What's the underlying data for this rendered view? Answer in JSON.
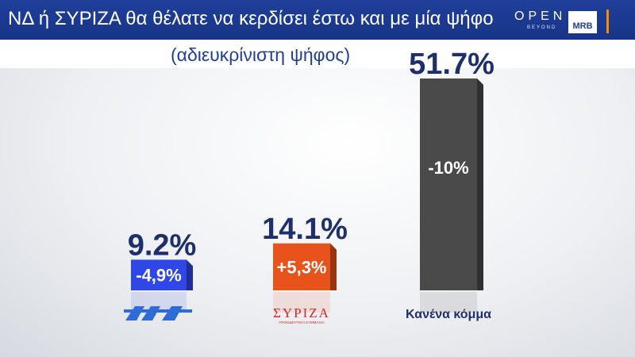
{
  "header": {
    "title": "ΝΔ ή ΣΥΡΙΖΑ θα θέλατε να κερδίσει έστω και με μία ψήφο",
    "subtitle": "(αδιευκρίνιστη ψήφος)",
    "brand": "OPEN",
    "brand_sub": "BEYOND",
    "pollster": "MRB"
  },
  "chart_data": {
    "type": "bar",
    "categories": [
      "ΝΔ",
      "ΣΥΡΙΖΑ",
      "Κανένα κόμμα"
    ],
    "values": [
      9.2,
      14.1,
      51.7
    ],
    "value_labels": [
      "9.2%",
      "14.1%",
      "51.7%"
    ],
    "change_labels": [
      "-4,9%",
      "+5,3%",
      "-10%"
    ],
    "category_labels": [
      "",
      "",
      "Κανένα κόμμα"
    ],
    "logo_text": [
      "",
      "ΣΥΡΙΖΑ",
      ""
    ],
    "logo_subtext": [
      "",
      "ΠΡΟΟΔΕΥΤΙΚΗ ΣΥΜΜΑΧΙΑ",
      ""
    ],
    "colors": [
      "#2f47e6",
      "#e8521b",
      "#4a4a4a"
    ],
    "ylim": [
      0,
      55
    ],
    "title": "ΝΔ ή ΣΥΡΙΖΑ θα θέλατε να κερδίσει έστω και με μία ψήφο"
  }
}
